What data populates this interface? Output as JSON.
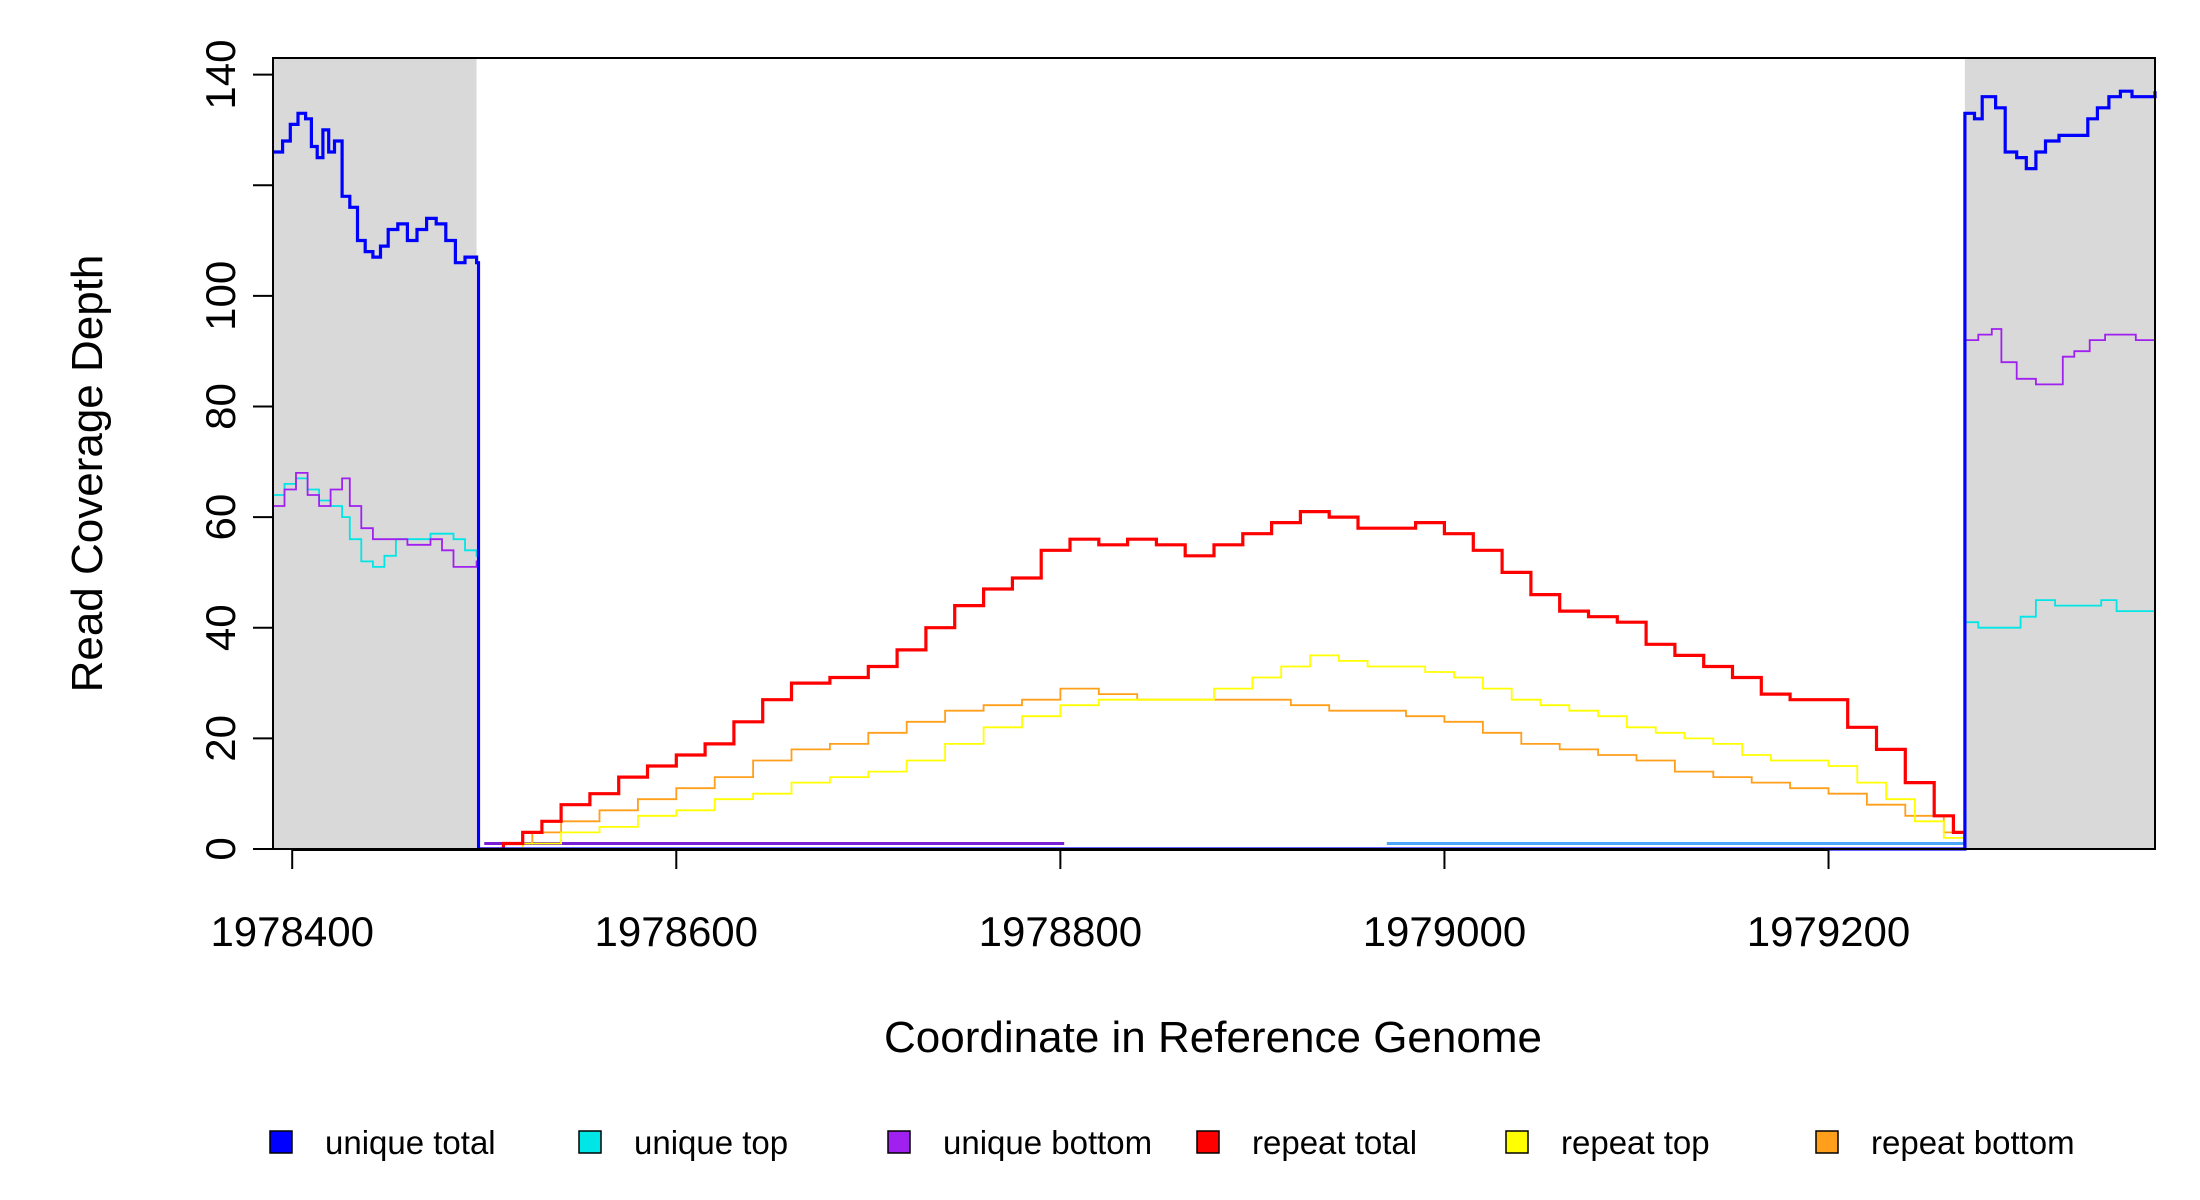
{
  "chart_data": {
    "type": "line",
    "title": "",
    "xlabel": "Coordinate in Reference Genome",
    "ylabel": "Read Coverage Depth",
    "xlim": [
      1978390,
      1979370
    ],
    "ylim": [
      0,
      143
    ],
    "x_ticks": [
      1978400,
      1978600,
      1978800,
      1979000,
      1979200
    ],
    "y_ticks": [
      0,
      20,
      40,
      60,
      80,
      100,
      120,
      140
    ],
    "y_tick_labels": [
      "0",
      "20",
      "40",
      "60",
      "80",
      "100",
      "",
      "140"
    ],
    "shaded_regions": [
      [
        1978390,
        1978496
      ],
      [
        1979271,
        1979370
      ]
    ],
    "grid": false,
    "legend_position": "bottom",
    "series": [
      {
        "name": "unique total",
        "color": "#0000ff",
        "points": [
          [
            1978390,
            126
          ],
          [
            1978395,
            128
          ],
          [
            1978399,
            131
          ],
          [
            1978403,
            133
          ],
          [
            1978407,
            132
          ],
          [
            1978410,
            127
          ],
          [
            1978413,
            125
          ],
          [
            1978416,
            130
          ],
          [
            1978419,
            126
          ],
          [
            1978422,
            128
          ],
          [
            1978426,
            118
          ],
          [
            1978430,
            116
          ],
          [
            1978434,
            110
          ],
          [
            1978438,
            108
          ],
          [
            1978442,
            107
          ],
          [
            1978446,
            109
          ],
          [
            1978450,
            112
          ],
          [
            1978455,
            113
          ],
          [
            1978460,
            110
          ],
          [
            1978465,
            112
          ],
          [
            1978470,
            114
          ],
          [
            1978475,
            113
          ],
          [
            1978480,
            110
          ],
          [
            1978485,
            106
          ],
          [
            1978490,
            107
          ],
          [
            1978496,
            106
          ],
          [
            1978497,
            0
          ],
          [
            1979270,
            0
          ],
          [
            1979271,
            133
          ],
          [
            1979276,
            132
          ],
          [
            1979280,
            136
          ],
          [
            1979287,
            134
          ],
          [
            1979292,
            126
          ],
          [
            1979298,
            125
          ],
          [
            1979303,
            123
          ],
          [
            1979308,
            126
          ],
          [
            1979313,
            128
          ],
          [
            1979320,
            129
          ],
          [
            1979328,
            129
          ],
          [
            1979335,
            132
          ],
          [
            1979340,
            134
          ],
          [
            1979346,
            136
          ],
          [
            1979352,
            137
          ],
          [
            1979358,
            136
          ],
          [
            1979364,
            136
          ],
          [
            1979370,
            137
          ]
        ]
      },
      {
        "name": "unique top",
        "color": "#00e5e5",
        "points": [
          [
            1978390,
            64
          ],
          [
            1978396,
            66
          ],
          [
            1978402,
            67
          ],
          [
            1978408,
            65
          ],
          [
            1978414,
            63
          ],
          [
            1978420,
            62
          ],
          [
            1978426,
            60
          ],
          [
            1978430,
            56
          ],
          [
            1978436,
            52
          ],
          [
            1978442,
            51
          ],
          [
            1978448,
            53
          ],
          [
            1978454,
            56
          ],
          [
            1978460,
            56
          ],
          [
            1978466,
            56
          ],
          [
            1978472,
            57
          ],
          [
            1978478,
            57
          ],
          [
            1978484,
            56
          ],
          [
            1978490,
            54
          ],
          [
            1978496,
            53
          ],
          [
            1978497,
            0
          ],
          [
            1979270,
            0
          ],
          [
            1979271,
            41
          ],
          [
            1979278,
            40
          ],
          [
            1979286,
            40
          ],
          [
            1979294,
            40
          ],
          [
            1979300,
            42
          ],
          [
            1979308,
            45
          ],
          [
            1979318,
            44
          ],
          [
            1979330,
            44
          ],
          [
            1979342,
            45
          ],
          [
            1979350,
            43
          ],
          [
            1979360,
            43
          ],
          [
            1979370,
            44
          ]
        ]
      },
      {
        "name": "unique bottom",
        "color": "#a020f0",
        "points": [
          [
            1978390,
            62
          ],
          [
            1978396,
            65
          ],
          [
            1978402,
            68
          ],
          [
            1978408,
            64
          ],
          [
            1978414,
            62
          ],
          [
            1978420,
            65
          ],
          [
            1978426,
            67
          ],
          [
            1978430,
            62
          ],
          [
            1978436,
            58
          ],
          [
            1978442,
            56
          ],
          [
            1978448,
            56
          ],
          [
            1978454,
            56
          ],
          [
            1978460,
            55
          ],
          [
            1978466,
            55
          ],
          [
            1978472,
            56
          ],
          [
            1978478,
            54
          ],
          [
            1978484,
            51
          ],
          [
            1978490,
            51
          ],
          [
            1978496,
            52
          ],
          [
            1978497,
            0
          ],
          [
            1979270,
            0
          ],
          [
            1979271,
            92
          ],
          [
            1979278,
            93
          ],
          [
            1979285,
            94
          ],
          [
            1979290,
            88
          ],
          [
            1979298,
            85
          ],
          [
            1979308,
            84
          ],
          [
            1979316,
            84
          ],
          [
            1979322,
            89
          ],
          [
            1979328,
            90
          ],
          [
            1979336,
            92
          ],
          [
            1979344,
            93
          ],
          [
            1979352,
            93
          ],
          [
            1979360,
            92
          ],
          [
            1979370,
            93
          ]
        ]
      },
      {
        "name": "repeat total",
        "color": "#ff0000",
        "points": [
          [
            1978497,
            0
          ],
          [
            1978510,
            1
          ],
          [
            1978520,
            3
          ],
          [
            1978530,
            5
          ],
          [
            1978540,
            8
          ],
          [
            1978555,
            10
          ],
          [
            1978570,
            13
          ],
          [
            1978585,
            15
          ],
          [
            1978600,
            17
          ],
          [
            1978615,
            19
          ],
          [
            1978630,
            23
          ],
          [
            1978645,
            27
          ],
          [
            1978660,
            30
          ],
          [
            1978680,
            31
          ],
          [
            1978700,
            33
          ],
          [
            1978715,
            36
          ],
          [
            1978730,
            40
          ],
          [
            1978745,
            44
          ],
          [
            1978760,
            47
          ],
          [
            1978775,
            49
          ],
          [
            1978790,
            54
          ],
          [
            1978805,
            56
          ],
          [
            1978820,
            55
          ],
          [
            1978835,
            56
          ],
          [
            1978850,
            55
          ],
          [
            1978865,
            53
          ],
          [
            1978880,
            55
          ],
          [
            1978895,
            57
          ],
          [
            1978910,
            59
          ],
          [
            1978925,
            61
          ],
          [
            1978940,
            60
          ],
          [
            1978955,
            58
          ],
          [
            1978970,
            58
          ],
          [
            1978985,
            59
          ],
          [
            1979000,
            57
          ],
          [
            1979015,
            54
          ],
          [
            1979030,
            50
          ],
          [
            1979045,
            46
          ],
          [
            1979060,
            43
          ],
          [
            1979075,
            42
          ],
          [
            1979090,
            41
          ],
          [
            1979105,
            37
          ],
          [
            1979120,
            35
          ],
          [
            1979135,
            33
          ],
          [
            1979150,
            31
          ],
          [
            1979165,
            28
          ],
          [
            1979180,
            27
          ],
          [
            1979195,
            27
          ],
          [
            1979210,
            22
          ],
          [
            1979225,
            18
          ],
          [
            1979240,
            12
          ],
          [
            1979255,
            6
          ],
          [
            1979265,
            3
          ],
          [
            1979271,
            1
          ]
        ]
      },
      {
        "name": "repeat top",
        "color": "#ffff00",
        "points": [
          [
            1978497,
            0
          ],
          [
            1978520,
            1
          ],
          [
            1978540,
            3
          ],
          [
            1978560,
            4
          ],
          [
            1978580,
            6
          ],
          [
            1978600,
            7
          ],
          [
            1978620,
            9
          ],
          [
            1978640,
            10
          ],
          [
            1978660,
            12
          ],
          [
            1978680,
            13
          ],
          [
            1978700,
            14
          ],
          [
            1978720,
            16
          ],
          [
            1978740,
            19
          ],
          [
            1978760,
            22
          ],
          [
            1978780,
            24
          ],
          [
            1978800,
            26
          ],
          [
            1978820,
            27
          ],
          [
            1978840,
            27
          ],
          [
            1978860,
            27
          ],
          [
            1978880,
            29
          ],
          [
            1978900,
            31
          ],
          [
            1978915,
            33
          ],
          [
            1978930,
            35
          ],
          [
            1978945,
            34
          ],
          [
            1978960,
            33
          ],
          [
            1978975,
            33
          ],
          [
            1978990,
            32
          ],
          [
            1979005,
            31
          ],
          [
            1979020,
            29
          ],
          [
            1979035,
            27
          ],
          [
            1979050,
            26
          ],
          [
            1979065,
            25
          ],
          [
            1979080,
            24
          ],
          [
            1979095,
            22
          ],
          [
            1979110,
            21
          ],
          [
            1979125,
            20
          ],
          [
            1979140,
            19
          ],
          [
            1979155,
            17
          ],
          [
            1979170,
            16
          ],
          [
            1979185,
            16
          ],
          [
            1979200,
            15
          ],
          [
            1979215,
            12
          ],
          [
            1979230,
            9
          ],
          [
            1979245,
            5
          ],
          [
            1979260,
            2
          ],
          [
            1979271,
            1
          ]
        ]
      },
      {
        "name": "repeat bottom",
        "color": "#ff9f1c",
        "points": [
          [
            1978497,
            0
          ],
          [
            1978510,
            1
          ],
          [
            1978525,
            3
          ],
          [
            1978540,
            5
          ],
          [
            1978560,
            7
          ],
          [
            1978580,
            9
          ],
          [
            1978600,
            11
          ],
          [
            1978620,
            13
          ],
          [
            1978640,
            16
          ],
          [
            1978660,
            18
          ],
          [
            1978680,
            19
          ],
          [
            1978700,
            21
          ],
          [
            1978720,
            23
          ],
          [
            1978740,
            25
          ],
          [
            1978760,
            26
          ],
          [
            1978780,
            27
          ],
          [
            1978800,
            29
          ],
          [
            1978820,
            28
          ],
          [
            1978840,
            27
          ],
          [
            1978860,
            27
          ],
          [
            1978880,
            27
          ],
          [
            1978900,
            27
          ],
          [
            1978920,
            26
          ],
          [
            1978940,
            25
          ],
          [
            1978960,
            25
          ],
          [
            1978980,
            24
          ],
          [
            1979000,
            23
          ],
          [
            1979020,
            21
          ],
          [
            1979040,
            19
          ],
          [
            1979060,
            18
          ],
          [
            1979080,
            17
          ],
          [
            1979100,
            16
          ],
          [
            1979120,
            14
          ],
          [
            1979140,
            13
          ],
          [
            1979160,
            12
          ],
          [
            1979180,
            11
          ],
          [
            1979200,
            10
          ],
          [
            1979220,
            8
          ],
          [
            1979240,
            6
          ],
          [
            1979260,
            3
          ],
          [
            1979271,
            1
          ]
        ]
      }
    ],
    "baseline_segments": [
      {
        "color": "#7a1fd8",
        "x0": 1978500,
        "x1": 1978802,
        "y": 1
      },
      {
        "color": "#4da6ff",
        "x0": 1978970,
        "x1": 1979271,
        "y": 1
      }
    ]
  }
}
